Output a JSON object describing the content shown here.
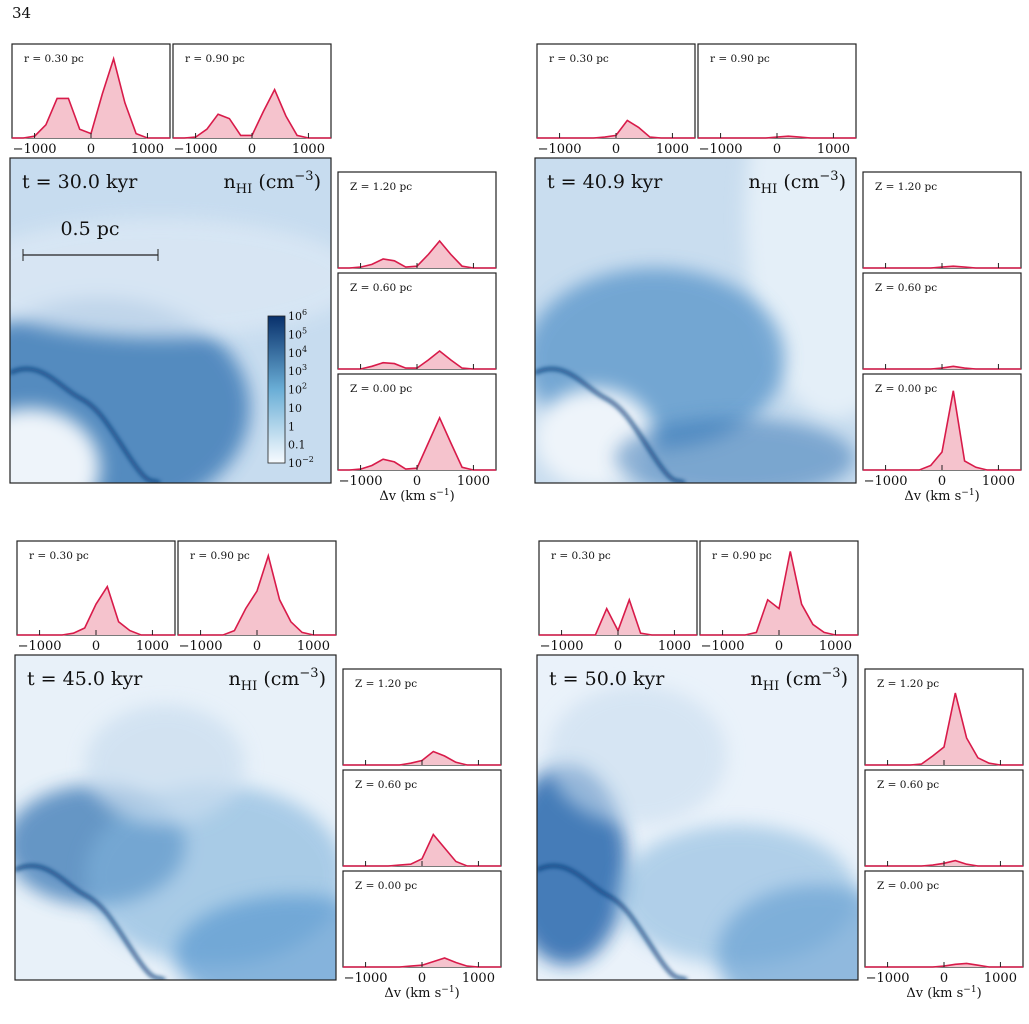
{
  "page_number": "34",
  "velocity_grid": [
    -1400,
    -1200,
    -1000,
    -800,
    -600,
    -400,
    -200,
    0,
    200,
    400,
    600,
    800,
    1000,
    1200,
    1400
  ],
  "xlim": [
    -1400,
    1400
  ],
  "ylim": [
    0,
    1
  ],
  "xticks": [
    {
      "value": -1000,
      "label": "−1000"
    },
    0,
    1000
  ],
  "xlabel": [
    "Δv (km s",
    "−1",
    ")"
  ],
  "density_label": [
    "n",
    "HI",
    " (cm",
    "−3",
    ")"
  ],
  "scale_bar": "0.5 pc",
  "colorbar": [
    {
      "base": "10",
      "exp": "6"
    },
    {
      "base": "10",
      "exp": "5"
    },
    {
      "base": "10",
      "exp": "4"
    },
    {
      "base": "10",
      "exp": "3"
    },
    {
      "base": "10",
      "exp": "2"
    },
    {
      "base": "10"
    },
    {
      "base": "1"
    },
    {
      "base": "0.1"
    },
    {
      "base": "10",
      "exp": "−2"
    }
  ],
  "panels": [
    {
      "time": "t = 30.0 kyr",
      "spectra_top": [
        {
          "label": "r = 0.30 pc",
          "values": [
            0,
            0,
            0.02,
            0.15,
            0.45,
            0.45,
            0.1,
            0.05,
            0.5,
            0.9,
            0.4,
            0.05,
            0,
            0,
            0
          ]
        },
        {
          "label": "r = 0.90 pc",
          "values": [
            0,
            0,
            0.01,
            0.1,
            0.27,
            0.22,
            0.03,
            0.03,
            0.3,
            0.55,
            0.25,
            0.03,
            0,
            0,
            0
          ]
        }
      ],
      "spectra_side": [
        {
          "label": "Z = 1.20 pc",
          "values": [
            0,
            0,
            0.01,
            0.04,
            0.1,
            0.08,
            0.01,
            0.02,
            0.15,
            0.3,
            0.15,
            0.02,
            0,
            0,
            0
          ]
        },
        {
          "label": "Z = 0.60 pc",
          "values": [
            0,
            0,
            0,
            0.03,
            0.07,
            0.06,
            0.01,
            0.01,
            0.1,
            0.2,
            0.1,
            0.01,
            0,
            0,
            0
          ]
        },
        {
          "label": "Z = 0.00 pc",
          "values": [
            0,
            0,
            0.01,
            0.05,
            0.12,
            0.09,
            0.01,
            0.02,
            0.3,
            0.58,
            0.3,
            0.03,
            0,
            0,
            0
          ]
        }
      ]
    },
    {
      "time": "t = 40.9 kyr",
      "spectra_top": [
        {
          "label": "r = 0.30 pc",
          "values": [
            0,
            0,
            0,
            0,
            0,
            0,
            0.01,
            0.03,
            0.2,
            0.12,
            0.01,
            0,
            0,
            0,
            0
          ]
        },
        {
          "label": "r = 0.90 pc",
          "values": [
            0,
            0,
            0,
            0,
            0,
            0,
            0,
            0.01,
            0.02,
            0.01,
            0,
            0,
            0,
            0,
            0
          ]
        }
      ],
      "spectra_side": [
        {
          "label": "Z = 1.20 pc",
          "values": [
            0,
            0,
            0,
            0,
            0,
            0,
            0,
            0.01,
            0.02,
            0.01,
            0,
            0,
            0,
            0,
            0
          ]
        },
        {
          "label": "Z = 0.60 pc",
          "values": [
            0,
            0,
            0,
            0,
            0,
            0,
            0,
            0.01,
            0.03,
            0.01,
            0,
            0,
            0,
            0,
            0
          ]
        },
        {
          "label": "Z = 0.00 pc",
          "values": [
            0,
            0,
            0,
            0,
            0,
            0,
            0.05,
            0.2,
            0.88,
            0.1,
            0.03,
            0,
            0,
            0,
            0
          ]
        }
      ]
    },
    {
      "time": "t = 45.0 kyr",
      "spectra_top": [
        {
          "label": "r = 0.30 pc",
          "values": [
            0,
            0,
            0,
            0,
            0,
            0.02,
            0.08,
            0.35,
            0.55,
            0.15,
            0.05,
            0,
            0,
            0,
            0
          ]
        },
        {
          "label": "r = 0.90 pc",
          "values": [
            0,
            0,
            0,
            0,
            0,
            0.05,
            0.3,
            0.5,
            0.9,
            0.4,
            0.15,
            0.03,
            0,
            0,
            0
          ]
        }
      ],
      "spectra_side": [
        {
          "label": "Z = 1.20 pc",
          "values": [
            0,
            0,
            0,
            0,
            0,
            0,
            0.02,
            0.05,
            0.15,
            0.1,
            0.03,
            0,
            0,
            0,
            0
          ]
        },
        {
          "label": "Z = 0.60 pc",
          "values": [
            0,
            0,
            0,
            0,
            0,
            0.01,
            0.02,
            0.08,
            0.35,
            0.2,
            0.05,
            0,
            0,
            0,
            0
          ]
        },
        {
          "label": "Z = 0.00 pc",
          "values": [
            0,
            0,
            0,
            0,
            0,
            0,
            0.01,
            0.02,
            0.06,
            0.1,
            0.05,
            0.01,
            0,
            0,
            0
          ]
        }
      ]
    },
    {
      "time": "t = 50.0 kyr",
      "spectra_top": [
        {
          "label": "r = 0.30 pc",
          "values": [
            0,
            0,
            0,
            0,
            0,
            0,
            0.3,
            0.05,
            0.4,
            0.02,
            0,
            0,
            0,
            0,
            0
          ]
        },
        {
          "label": "r = 0.90 pc",
          "values": [
            0,
            0,
            0,
            0,
            0,
            0.03,
            0.4,
            0.3,
            0.95,
            0.35,
            0.12,
            0.03,
            0,
            0,
            0
          ]
        }
      ],
      "spectra_side": [
        {
          "label": "Z = 1.20 pc",
          "values": [
            0,
            0,
            0,
            0,
            0,
            0.01,
            0.1,
            0.2,
            0.8,
            0.3,
            0.08,
            0.02,
            0,
            0,
            0
          ]
        },
        {
          "label": "Z = 0.60 pc",
          "values": [
            0,
            0,
            0,
            0,
            0,
            0,
            0.01,
            0.03,
            0.06,
            0.02,
            0,
            0,
            0,
            0,
            0
          ]
        },
        {
          "label": "Z = 0.00 pc",
          "values": [
            0,
            0,
            0,
            0,
            0,
            0,
            0,
            0.01,
            0.03,
            0.04,
            0.02,
            0,
            0,
            0,
            0
          ]
        }
      ]
    }
  ]
}
